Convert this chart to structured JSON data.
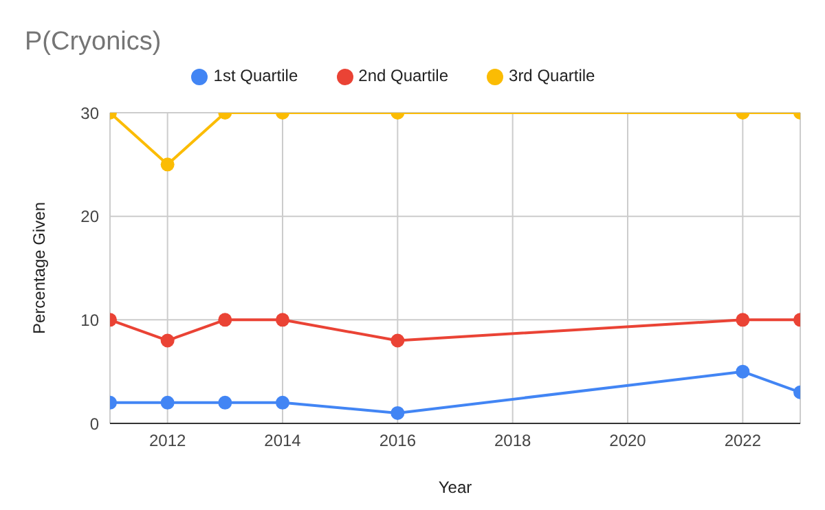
{
  "chart_data": {
    "type": "line",
    "title": "P(Cryonics)",
    "xlabel": "Year",
    "ylabel": "Percentage Given",
    "x": [
      2011,
      2012,
      2013,
      2014,
      2016,
      2022,
      2023
    ],
    "series": [
      {
        "name": "1st Quartile",
        "color": "#4285f4",
        "values": [
          2,
          2,
          2,
          2,
          1,
          5,
          3
        ]
      },
      {
        "name": "2nd Quartile",
        "color": "#ea4335",
        "values": [
          10,
          8,
          10,
          10,
          8,
          10,
          10
        ]
      },
      {
        "name": "3rd Quartile",
        "color": "#fbbc04",
        "values": [
          30,
          25,
          30,
          30,
          30,
          30,
          30
        ]
      }
    ],
    "xlim": [
      2011,
      2023
    ],
    "xticks": [
      2012,
      2014,
      2016,
      2018,
      2020,
      2022
    ],
    "ylim": [
      0,
      30
    ],
    "yticks": [
      0,
      10,
      20,
      30
    ],
    "grid": true,
    "legend": "top",
    "marker": "circle",
    "line_style": "solid"
  }
}
